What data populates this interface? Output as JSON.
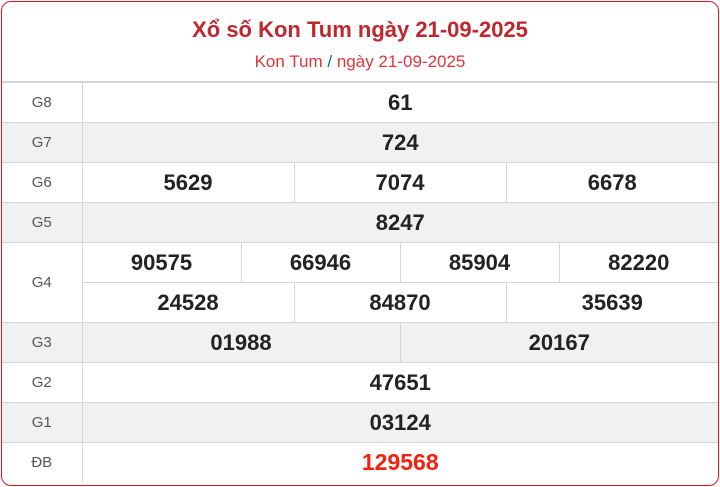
{
  "header": {
    "title": "Xổ số Kon Tum ngày 21-09-2025",
    "breadcrumb": {
      "province": "Kon Tum",
      "separator": "/",
      "date": "ngày 21-09-2025"
    }
  },
  "prizes": {
    "g8": {
      "label": "G8",
      "numbers": [
        "61"
      ]
    },
    "g7": {
      "label": "G7",
      "numbers": [
        "724"
      ]
    },
    "g6": {
      "label": "G6",
      "numbers": [
        "5629",
        "7074",
        "6678"
      ]
    },
    "g5": {
      "label": "G5",
      "numbers": [
        "8247"
      ]
    },
    "g4": {
      "label": "G4",
      "numbers": [
        "90575",
        "66946",
        "85904",
        "82220",
        "24528",
        "84870",
        "35639"
      ]
    },
    "g3": {
      "label": "G3",
      "numbers": [
        "01988",
        "20167"
      ]
    },
    "g2": {
      "label": "G2",
      "numbers": [
        "47651"
      ]
    },
    "g1": {
      "label": "G1",
      "numbers": [
        "03124"
      ]
    },
    "db": {
      "label": "ĐB",
      "numbers": [
        "129568"
      ]
    }
  },
  "colors": {
    "accent": "#c0272d",
    "special": "#f2220f",
    "border": "#e8141b"
  }
}
